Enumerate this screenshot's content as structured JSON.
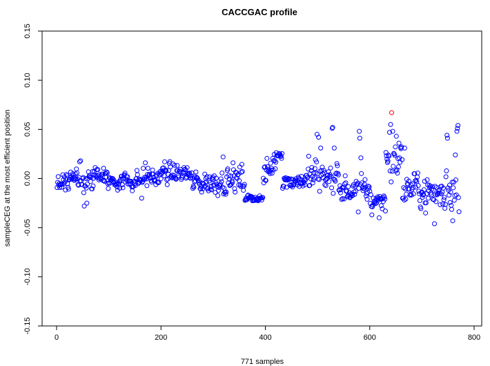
{
  "chart_data": {
    "type": "scatter",
    "title": "CACCGAC profile",
    "xlabel": "771 samples",
    "ylabel": "sampleCEG at the most efficient position",
    "xlim": [
      -28,
      800
    ],
    "ylim": [
      -0.15,
      0.15
    ],
    "x_ticks": [
      "0",
      "200",
      "400",
      "600",
      "800"
    ],
    "y_ticks": [
      "-0.15",
      "-0.10",
      "-0.05",
      "0.00",
      "0.05",
      "0.10",
      "0.15"
    ],
    "grid": false,
    "colors": {
      "points": "#0000ff",
      "highlight": "#ff0000"
    },
    "highlight_point": {
      "x": 642,
      "y": 0.067
    },
    "segments": [
      {
        "x0": 1,
        "x1": 40,
        "center": -0.004,
        "spread": 0.011,
        "slope": 0.0002
      },
      {
        "x0": 41,
        "x1": 90,
        "center": -0.01,
        "spread": 0.012,
        "slope": 0.00035
      },
      {
        "x0": 91,
        "x1": 165,
        "center": -0.002,
        "spread": 0.009,
        "slope": 0.0
      },
      {
        "x0": 166,
        "x1": 200,
        "center": 0.001,
        "spread": 0.009,
        "slope": 0.0
      },
      {
        "x0": 201,
        "x1": 255,
        "center": 0.005,
        "spread": 0.009,
        "slope": 0.0
      },
      {
        "x0": 256,
        "x1": 300,
        "center": -0.004,
        "spread": 0.011,
        "slope": 0.0
      },
      {
        "x0": 301,
        "x1": 360,
        "center": -0.002,
        "spread": 0.013,
        "slope": 0.0
      },
      {
        "x0": 361,
        "x1": 395,
        "center": -0.02,
        "spread": 0.003,
        "slope": 0.0
      },
      {
        "x0": 396,
        "x1": 420,
        "center": -0.001,
        "spread": 0.014,
        "slope": 0.0009
      },
      {
        "x0": 421,
        "x1": 432,
        "center": 0.025,
        "spread": 0.003,
        "slope": 0.0
      },
      {
        "x0": 433,
        "x1": 480,
        "center": -0.002,
        "spread": 0.009,
        "slope": 0.0
      },
      {
        "x0": 481,
        "x1": 540,
        "center": 0.002,
        "spread": 0.016,
        "slope": 0.0
      },
      {
        "x0": 541,
        "x1": 600,
        "center": -0.012,
        "spread": 0.012,
        "slope": 0.0
      },
      {
        "x0": 601,
        "x1": 630,
        "center": -0.022,
        "spread": 0.01,
        "slope": 0.0
      },
      {
        "x0": 631,
        "x1": 662,
        "center": 0.018,
        "spread": 0.017,
        "slope": 0.0
      },
      {
        "x0": 663,
        "x1": 700,
        "center": -0.01,
        "spread": 0.016,
        "slope": 0.0
      },
      {
        "x0": 701,
        "x1": 745,
        "center": -0.015,
        "spread": 0.016,
        "slope": 0.0
      },
      {
        "x0": 746,
        "x1": 771,
        "center": -0.006,
        "spread": 0.024,
        "slope": 0.0
      }
    ],
    "spikes": [
      {
        "x": 44,
        "y": 0.017
      },
      {
        "x": 46,
        "y": 0.018
      },
      {
        "x": 53,
        "y": -0.028
      },
      {
        "x": 58,
        "y": -0.025
      },
      {
        "x": 163,
        "y": -0.02
      },
      {
        "x": 170,
        "y": 0.016
      },
      {
        "x": 207,
        "y": 0.017
      },
      {
        "x": 319,
        "y": 0.022
      },
      {
        "x": 338,
        "y": 0.016
      },
      {
        "x": 499,
        "y": 0.045
      },
      {
        "x": 502,
        "y": 0.042
      },
      {
        "x": 506,
        "y": 0.031
      },
      {
        "x": 528,
        "y": 0.051
      },
      {
        "x": 529,
        "y": 0.052
      },
      {
        "x": 532,
        "y": 0.031
      },
      {
        "x": 580,
        "y": 0.048
      },
      {
        "x": 581,
        "y": 0.041
      },
      {
        "x": 583,
        "y": 0.021
      },
      {
        "x": 578,
        "y": -0.034
      },
      {
        "x": 604,
        "y": -0.037
      },
      {
        "x": 618,
        "y": -0.04
      },
      {
        "x": 638,
        "y": 0.047
      },
      {
        "x": 640,
        "y": 0.055
      },
      {
        "x": 644,
        "y": 0.048
      },
      {
        "x": 651,
        "y": 0.043
      },
      {
        "x": 656,
        "y": 0.036
      },
      {
        "x": 667,
        "y": 0.031
      },
      {
        "x": 724,
        "y": -0.046
      },
      {
        "x": 748,
        "y": 0.044
      },
      {
        "x": 749,
        "y": 0.041
      },
      {
        "x": 759,
        "y": -0.043
      },
      {
        "x": 764,
        "y": 0.024
      },
      {
        "x": 767,
        "y": 0.048
      },
      {
        "x": 768,
        "y": 0.051
      },
      {
        "x": 769,
        "y": 0.054
      }
    ]
  }
}
